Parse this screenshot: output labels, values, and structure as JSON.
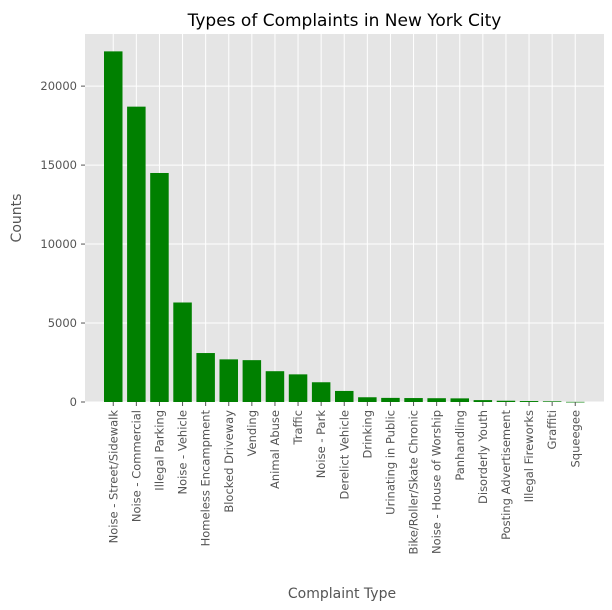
{
  "chart_data": {
    "type": "bar",
    "title": "Types of Complaints in New York City",
    "xlabel": "Complaint Type",
    "ylabel": "Counts",
    "ylim": [
      0,
      23300
    ],
    "yticks": [
      0,
      5000,
      10000,
      15000,
      20000
    ],
    "ytick_labels": [
      "0",
      "5000",
      "10000",
      "15000",
      "20000"
    ],
    "grid": true,
    "bar_color": "#008000",
    "background_color": "#e5e5e5",
    "categories": [
      "Noise - Street/Sidewalk",
      "Noise - Commercial",
      "Illegal Parking",
      "Noise - Vehicle",
      "Homeless Encampment",
      "Blocked Driveway",
      "Vending",
      "Animal Abuse",
      "Traffic",
      "Noise - Park",
      "Derelict Vehicle",
      "Drinking",
      "Urinating in Public",
      "Bike/Roller/Skate Chronic",
      "Noise - House of Worship",
      "Panhandling",
      "Disorderly Youth",
      "Posting Advertisement",
      "Illegal Fireworks",
      "Graffiti",
      "Squeegee"
    ],
    "values": [
      22200,
      18700,
      14500,
      6300,
      3100,
      2700,
      2650,
      1950,
      1750,
      1250,
      700,
      300,
      260,
      250,
      240,
      230,
      120,
      80,
      60,
      40,
      10
    ]
  }
}
